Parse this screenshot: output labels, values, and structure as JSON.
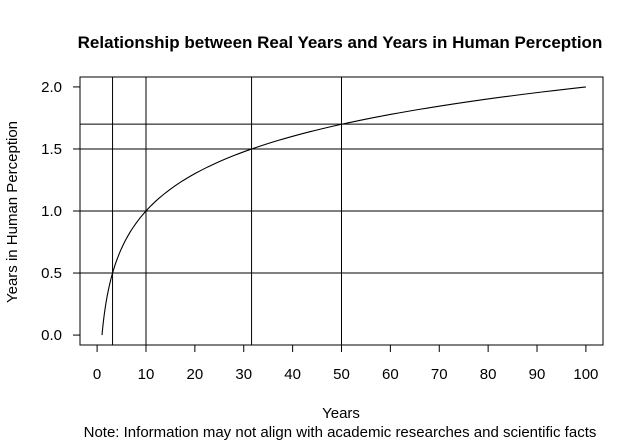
{
  "chart_data": {
    "type": "line",
    "title": "Relationship between Real Years and Years in Human Perception",
    "xlabel": "Years",
    "ylabel": "Years in Human Perception",
    "note": "Note: Information may not align with academic researches and scientific facts",
    "xlim": [
      -3.5,
      103.5
    ],
    "ylim": [
      -0.08,
      2.08
    ],
    "x_ticks": [
      0,
      10,
      20,
      30,
      40,
      50,
      60,
      70,
      80,
      90,
      100
    ],
    "x_tick_labels": [
      "0",
      "10",
      "20",
      "30",
      "40",
      "50",
      "60",
      "70",
      "80",
      "90",
      "100"
    ],
    "y_ticks": [
      0.0,
      0.5,
      1.0,
      1.5,
      2.0
    ],
    "y_tick_labels": [
      "0.0",
      "0.5",
      "1.0",
      "1.5",
      "2.0"
    ],
    "series": [
      {
        "curve": "log10",
        "x": [
          1,
          2,
          3,
          4,
          5,
          6,
          8,
          10,
          13,
          16,
          20,
          25,
          30,
          35,
          40,
          45,
          50,
          55,
          60,
          65,
          70,
          75,
          80,
          85,
          90,
          95,
          100
        ],
        "y": [
          0.0,
          0.301,
          0.477,
          0.602,
          0.699,
          0.778,
          0.903,
          1.0,
          1.114,
          1.204,
          1.301,
          1.398,
          1.477,
          1.544,
          1.602,
          1.653,
          1.699,
          1.74,
          1.778,
          1.813,
          1.845,
          1.875,
          1.903,
          1.929,
          1.954,
          1.978,
          2.0
        ]
      }
    ],
    "reference_lines": {
      "vertical": [
        3.16,
        10,
        31.6,
        50
      ],
      "horizontal": [
        0.5,
        1.0,
        1.5,
        1.7
      ]
    },
    "grid": false,
    "legend": "none"
  }
}
